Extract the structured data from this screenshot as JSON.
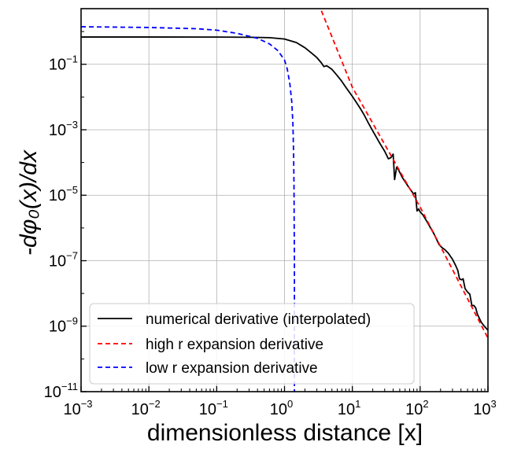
{
  "chart_data": {
    "type": "line",
    "xscale": "log",
    "yscale": "log",
    "xlim": [
      0.001,
      1000
    ],
    "ylim": [
      1e-11,
      5
    ],
    "grid": true,
    "xlabel": "dimensionless distance [x]",
    "ylabel": "-dφ₀(x)/dx",
    "x_ticks": [
      {
        "base": "10",
        "exp": "−3",
        "value": 0.001
      },
      {
        "base": "10",
        "exp": "−2",
        "value": 0.01
      },
      {
        "base": "10",
        "exp": "−1",
        "value": 0.1
      },
      {
        "base": "10",
        "exp": "0",
        "value": 1
      },
      {
        "base": "10",
        "exp": "1",
        "value": 10
      },
      {
        "base": "10",
        "exp": "2",
        "value": 100
      },
      {
        "base": "10",
        "exp": "3",
        "value": 1000
      }
    ],
    "y_ticks": [
      {
        "base": "10",
        "exp": "−11",
        "value": 1e-11
      },
      {
        "base": "10",
        "exp": "−9",
        "value": 1e-09
      },
      {
        "base": "10",
        "exp": "−7",
        "value": 1e-07
      },
      {
        "base": "10",
        "exp": "−5",
        "value": 1e-05
      },
      {
        "base": "10",
        "exp": "−3",
        "value": 0.001
      },
      {
        "base": "10",
        "exp": "−1",
        "value": 0.1
      }
    ],
    "legend_position": "lower-left",
    "series": [
      {
        "name": "numerical derivative (interpolated)",
        "color": "#000000",
        "dash": "solid",
        "x": [
          0.001,
          0.01,
          0.1,
          0.3,
          0.6,
          1.0,
          1.5,
          2.0,
          2.5,
          3.0,
          3.5,
          3.8,
          4.2,
          5.0,
          6.0,
          7.0,
          8.0,
          10,
          13,
          15,
          17,
          20,
          25,
          30,
          34,
          37,
          40,
          42,
          45,
          48,
          50,
          55,
          60,
          70,
          80,
          85,
          90,
          95,
          100,
          110,
          130,
          160,
          190,
          210,
          230,
          260,
          300,
          330,
          360,
          380,
          410,
          430,
          460,
          500,
          540,
          580,
          620,
          660,
          700,
          750,
          800,
          900,
          1000
        ],
        "y": [
          0.68,
          0.68,
          0.677,
          0.67,
          0.65,
          0.59,
          0.46,
          0.32,
          0.22,
          0.16,
          0.11,
          0.085,
          0.09,
          0.07,
          0.045,
          0.03,
          0.02,
          0.0105,
          0.0046,
          0.0028,
          0.0017,
          0.00092,
          0.00041,
          0.00022,
          0.00013,
          0.00014,
          0.00018,
          3e-05,
          7.2e-05,
          6e-05,
          5e-05,
          3.4e-05,
          2.6e-05,
          1.6e-05,
          1.1e-05,
          1.2e-05,
          3.3e-06,
          3.8e-06,
          3.1e-06,
          2.5e-06,
          1.4e-06,
          6.6e-07,
          3.1e-07,
          2.5e-07,
          2.2e-07,
          1.7e-07,
          1.1e-07,
          7.5e-08,
          5e-08,
          2.8e-08,
          2.6e-08,
          2.8e-08,
          1.4e-08,
          1.1e-08,
          9.5e-09,
          4.2e-09,
          4.3e-09,
          3.6e-09,
          2.3e-09,
          1.7e-09,
          1.3e-09,
          9.5e-10,
          7.5e-10
        ]
      },
      {
        "name": "high r expansion derivative",
        "color": "#ff0000",
        "dash": "dashed",
        "x": [
          3.5,
          10,
          100,
          1000
        ],
        "y": [
          4.3,
          0.0199,
          4.36e-06,
          4.3e-10
        ]
      },
      {
        "name": "low r expansion derivative",
        "color": "#0000ff",
        "dash": "dashed",
        "x": [
          0.001,
          0.01,
          0.05,
          0.1,
          0.2,
          0.4,
          0.6,
          0.8,
          1.0,
          1.1,
          1.2,
          1.28,
          1.33,
          1.36,
          1.38,
          1.39,
          1.4,
          1.4
        ],
        "y": [
          1.4,
          1.33,
          1.22,
          1.1,
          0.88,
          0.62,
          0.42,
          0.26,
          0.135,
          0.07,
          0.025,
          0.007,
          0.0015,
          0.0002,
          2e-05,
          1e-06,
          1e-07,
          1e-11
        ]
      }
    ]
  }
}
